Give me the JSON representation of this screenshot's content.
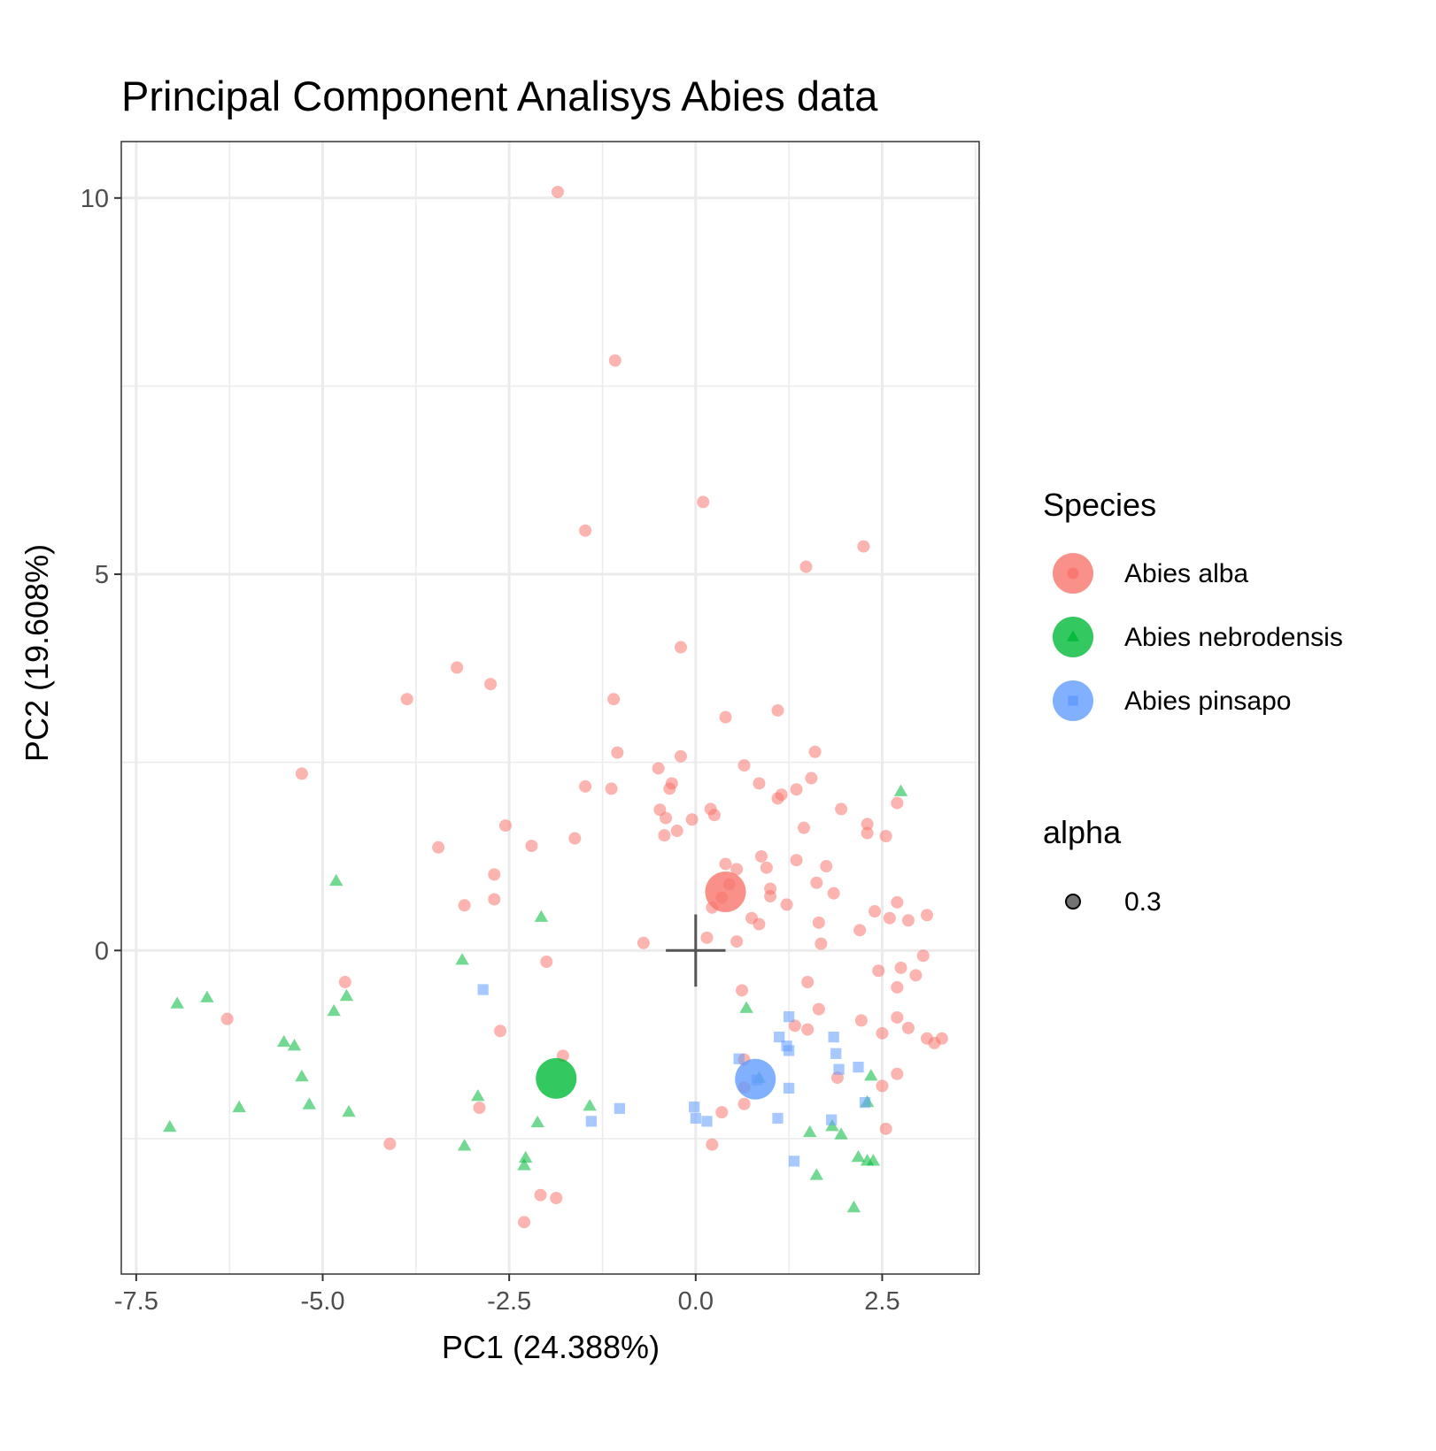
{
  "chart_data": {
    "type": "scatter",
    "title": "Principal Component Analisys Abies data",
    "xlabel": "PC1 (24.388%)",
    "ylabel": "PC2 (19.608%)",
    "xlim": [
      -7.7,
      3.8
    ],
    "ylim": [
      -4.3,
      10.75
    ],
    "x_ticks": [
      -7.5,
      -5.0,
      -2.5,
      0.0,
      2.5
    ],
    "x_tick_labels": [
      "-7.5",
      "-5.0",
      "-2.5",
      "0.0",
      "2.5"
    ],
    "y_ticks": [
      0,
      5,
      10
    ],
    "y_tick_labels": [
      "0",
      "5",
      "10"
    ],
    "grid": true,
    "legend_position": "right",
    "legend": {
      "species_title": "Species",
      "alpha_title": "alpha",
      "alpha_label": "0.3"
    },
    "origin_marker": [
      0,
      0
    ],
    "series": [
      {
        "name": "Abies alba",
        "color": "#F8766D",
        "shape": "circle",
        "centroid": [
          0.4,
          0.78
        ],
        "points": [
          [
            -1.85,
            10.08
          ],
          [
            -1.08,
            7.84
          ],
          [
            0.1,
            5.96
          ],
          [
            -1.48,
            5.58
          ],
          [
            2.25,
            5.37
          ],
          [
            1.48,
            5.1
          ],
          [
            -0.2,
            4.03
          ],
          [
            -3.2,
            3.76
          ],
          [
            -2.75,
            3.54
          ],
          [
            -3.87,
            3.34
          ],
          [
            -1.1,
            3.34
          ],
          [
            1.1,
            3.19
          ],
          [
            0.4,
            3.1
          ],
          [
            -5.28,
            2.35
          ],
          [
            -1.05,
            2.63
          ],
          [
            -0.2,
            2.58
          ],
          [
            0.65,
            2.46
          ],
          [
            1.6,
            2.64
          ],
          [
            -0.5,
            2.42
          ],
          [
            1.55,
            2.29
          ],
          [
            -1.48,
            2.18
          ],
          [
            -1.13,
            2.15
          ],
          [
            -0.32,
            2.22
          ],
          [
            -0.35,
            2.15
          ],
          [
            0.85,
            2.22
          ],
          [
            1.35,
            2.14
          ],
          [
            1.15,
            2.07
          ],
          [
            1.1,
            2.02
          ],
          [
            2.7,
            1.96
          ],
          [
            -0.48,
            1.87
          ],
          [
            0.2,
            1.88
          ],
          [
            0.25,
            1.8
          ],
          [
            1.95,
            1.88
          ],
          [
            -0.4,
            1.76
          ],
          [
            -0.05,
            1.74
          ],
          [
            2.3,
            1.68
          ],
          [
            -2.55,
            1.66
          ],
          [
            1.45,
            1.63
          ],
          [
            -0.42,
            1.53
          ],
          [
            -0.25,
            1.59
          ],
          [
            2.3,
            1.56
          ],
          [
            2.55,
            1.52
          ],
          [
            -1.62,
            1.49
          ],
          [
            -3.45,
            1.37
          ],
          [
            -2.2,
            1.39
          ],
          [
            0.88,
            1.25
          ],
          [
            1.35,
            1.2
          ],
          [
            0.95,
            1.1
          ],
          [
            1.75,
            1.12
          ],
          [
            0.4,
            1.15
          ],
          [
            0.55,
            1.08
          ],
          [
            -2.7,
            1.01
          ],
          [
            1.62,
            0.9
          ],
          [
            0.45,
            0.88
          ],
          [
            1.0,
            0.82
          ],
          [
            1.85,
            0.76
          ],
          [
            0.35,
            0.7
          ],
          [
            1.0,
            0.72
          ],
          [
            -2.7,
            0.68
          ],
          [
            2.7,
            0.64
          ],
          [
            -3.1,
            0.6
          ],
          [
            1.22,
            0.61
          ],
          [
            0.22,
            0.57
          ],
          [
            2.4,
            0.52
          ],
          [
            3.1,
            0.47
          ],
          [
            2.6,
            0.43
          ],
          [
            0.75,
            0.43
          ],
          [
            2.85,
            0.4
          ],
          [
            0.85,
            0.35
          ],
          [
            1.65,
            0.37
          ],
          [
            2.2,
            0.27
          ],
          [
            0.15,
            0.17
          ],
          [
            0.55,
            0.12
          ],
          [
            -0.7,
            0.1
          ],
          [
            1.68,
            0.09
          ],
          [
            3.05,
            -0.07
          ],
          [
            -2.0,
            -0.15
          ],
          [
            2.75,
            -0.23
          ],
          [
            2.45,
            -0.27
          ],
          [
            2.95,
            -0.33
          ],
          [
            -4.7,
            -0.42
          ],
          [
            1.5,
            -0.42
          ],
          [
            2.7,
            -0.49
          ],
          [
            0.62,
            -0.53
          ],
          [
            1.65,
            -0.78
          ],
          [
            2.7,
            -0.89
          ],
          [
            -6.28,
            -0.91
          ],
          [
            2.22,
            -0.93
          ],
          [
            1.5,
            -1.05
          ],
          [
            2.85,
            -1.03
          ],
          [
            1.33,
            -1.0
          ],
          [
            -2.62,
            -1.07
          ],
          [
            2.5,
            -1.1
          ],
          [
            3.1,
            -1.17
          ],
          [
            3.2,
            -1.23
          ],
          [
            3.3,
            -1.17
          ],
          [
            0.65,
            -1.45
          ],
          [
            2.7,
            -1.64
          ],
          [
            1.9,
            -1.69
          ],
          [
            0.65,
            -1.82
          ],
          [
            2.5,
            -1.8
          ],
          [
            -1.78,
            -1.4
          ],
          [
            -2.9,
            -2.09
          ],
          [
            0.65,
            -2.04
          ],
          [
            0.35,
            -2.15
          ],
          [
            2.55,
            -2.37
          ],
          [
            -4.1,
            -2.57
          ],
          [
            0.22,
            -2.58
          ],
          [
            -2.08,
            -3.25
          ],
          [
            -1.87,
            -3.29
          ],
          [
            -2.3,
            -3.61
          ]
        ]
      },
      {
        "name": "Abies nebrodensis",
        "color": "#00BA38",
        "shape": "triangle",
        "centroid": [
          -1.87,
          -1.7
        ],
        "points": [
          [
            2.75,
            2.11
          ],
          [
            -4.82,
            0.92
          ],
          [
            -2.07,
            0.44
          ],
          [
            -3.13,
            -0.13
          ],
          [
            -6.55,
            -0.63
          ],
          [
            -6.95,
            -0.71
          ],
          [
            -4.68,
            -0.61
          ],
          [
            -4.85,
            -0.81
          ],
          [
            0.68,
            -0.77
          ],
          [
            -5.52,
            -1.22
          ],
          [
            -5.38,
            -1.27
          ],
          [
            -5.28,
            -1.68
          ],
          [
            0.85,
            -1.7
          ],
          [
            -2.92,
            -1.94
          ],
          [
            -5.18,
            -2.05
          ],
          [
            -6.12,
            -2.09
          ],
          [
            -4.65,
            -2.15
          ],
          [
            -1.42,
            -2.07
          ],
          [
            2.3,
            -2.02
          ],
          [
            2.35,
            -1.67
          ],
          [
            -2.12,
            -2.29
          ],
          [
            1.53,
            -2.42
          ],
          [
            1.83,
            -2.34
          ],
          [
            1.95,
            -2.45
          ],
          [
            -3.1,
            -2.6
          ],
          [
            -2.28,
            -2.76
          ],
          [
            -2.3,
            -2.86
          ],
          [
            2.18,
            -2.75
          ],
          [
            2.3,
            -2.8
          ],
          [
            2.38,
            -2.8
          ],
          [
            1.62,
            -2.99
          ],
          [
            2.12,
            -3.42
          ],
          [
            -7.05,
            -2.35
          ]
        ]
      },
      {
        "name": "Abies pinsapo",
        "color": "#619CFF",
        "shape": "square",
        "centroid": [
          0.8,
          -1.71
        ],
        "points": [
          [
            -2.85,
            -0.52
          ],
          [
            1.25,
            -0.88
          ],
          [
            1.12,
            -1.15
          ],
          [
            1.22,
            -1.27
          ],
          [
            1.25,
            -1.33
          ],
          [
            0.58,
            -1.44
          ],
          [
            1.85,
            -1.15
          ],
          [
            1.88,
            -1.37
          ],
          [
            1.92,
            -1.58
          ],
          [
            2.18,
            -1.55
          ],
          [
            0.82,
            -1.72
          ],
          [
            1.25,
            -1.83
          ],
          [
            2.27,
            -2.02
          ],
          [
            -1.4,
            -2.27
          ],
          [
            -1.02,
            -2.1
          ],
          [
            -0.02,
            -2.08
          ],
          [
            0.0,
            -2.23
          ],
          [
            0.15,
            -2.27
          ],
          [
            1.1,
            -2.23
          ],
          [
            1.82,
            -2.25
          ],
          [
            1.32,
            -2.8
          ]
        ]
      }
    ]
  }
}
